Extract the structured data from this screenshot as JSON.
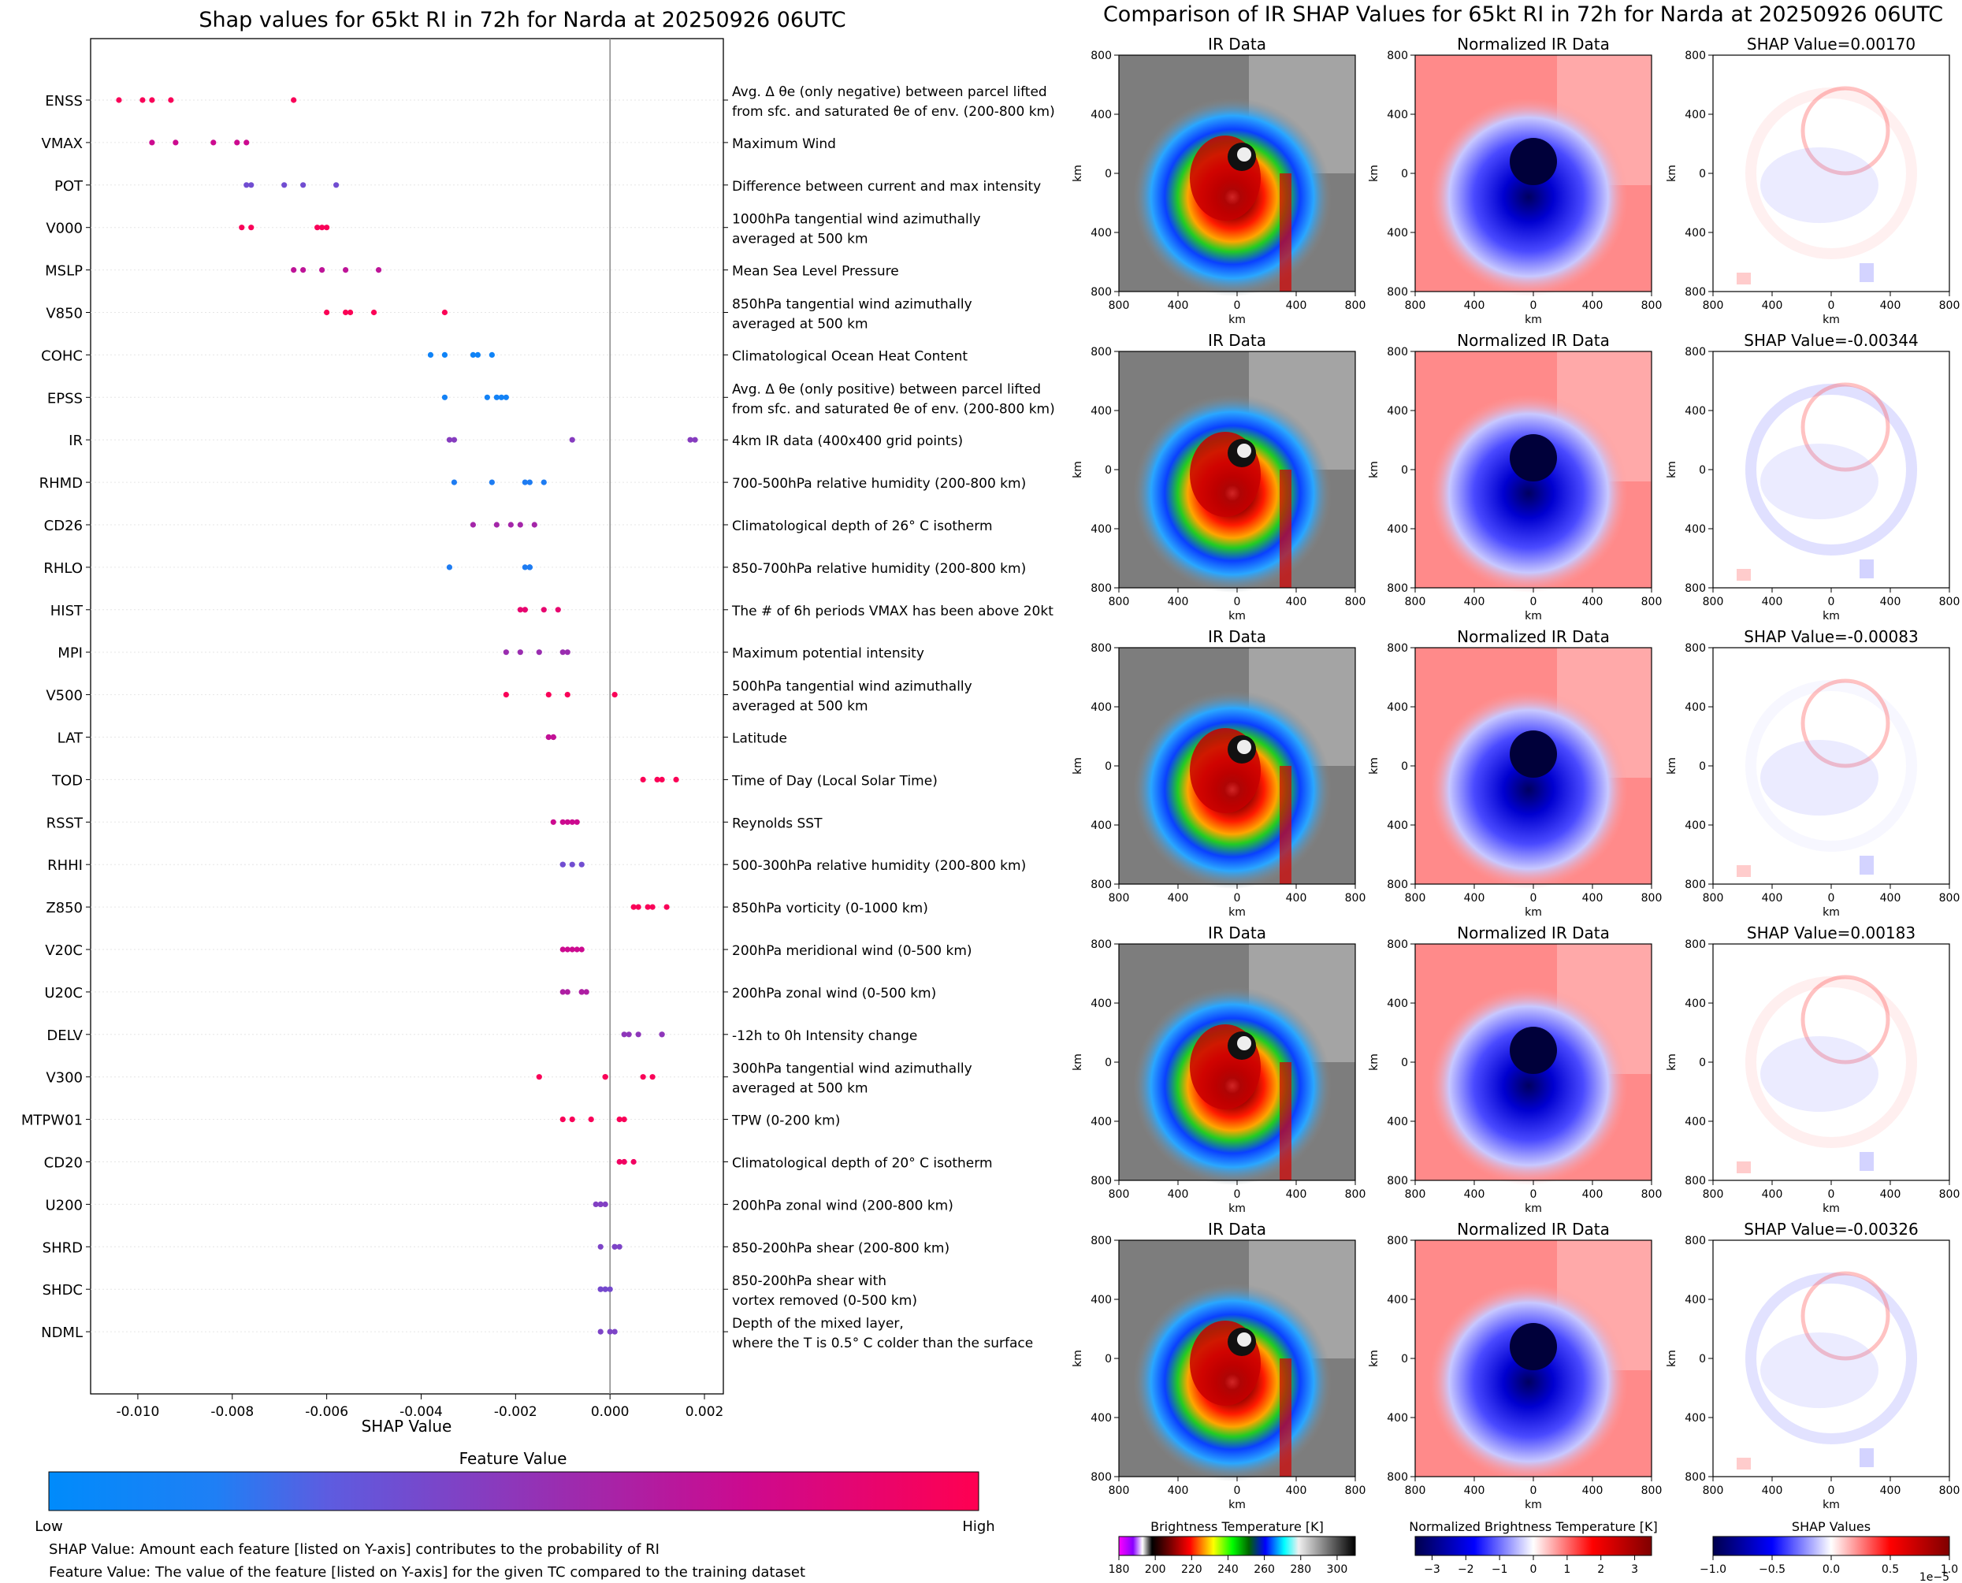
{
  "left_title": "Shap values for 65kt RI in 72h for Narda at 20250926 06UTC",
  "right_title": "Comparison of IR SHAP Values for 65kt RI in 72h for Narda at 20250926 06UTC",
  "chart_data": {
    "type": "scatter",
    "title": "Shap values for 65kt RI in 72h for Narda at 20250926 06UTC",
    "xlabel": "SHAP Value",
    "xlim": [
      -0.011,
      0.0024
    ],
    "xticks": [
      "-0.010",
      "-0.008",
      "-0.006",
      "-0.004",
      "-0.002",
      "0.000",
      "0.002"
    ],
    "xtick_values": [
      -0.01,
      -0.008,
      -0.006,
      -0.004,
      -0.002,
      0.0,
      0.002
    ],
    "vline": 0.0,
    "features": [
      {
        "name": "ENSS",
        "desc": [
          "Avg. Δ θe (only negative) between parcel lifted",
          "from sfc. and saturated θe of env. (200-800 km)"
        ],
        "fv": 0.97,
        "values": [
          -0.0104,
          -0.0099,
          -0.0097,
          -0.0093,
          -0.0067
        ]
      },
      {
        "name": "VMAX",
        "desc": [
          "Maximum Wind"
        ],
        "fv": 0.75,
        "values": [
          -0.0097,
          -0.0092,
          -0.0084,
          -0.0079,
          -0.0077
        ]
      },
      {
        "name": "POT",
        "desc": [
          "Difference between current and max intensity"
        ],
        "fv": 0.33,
        "values": [
          -0.0077,
          -0.0076,
          -0.0069,
          -0.0065,
          -0.0058
        ]
      },
      {
        "name": "V000",
        "desc": [
          "1000hPa tangential wind azimuthally",
          "averaged at 500 km"
        ],
        "fv": 0.97,
        "values": [
          -0.0078,
          -0.0076,
          -0.0062,
          -0.0061,
          -0.006
        ]
      },
      {
        "name": "MSLP",
        "desc": [
          "Mean Sea Level Pressure"
        ],
        "fv": 0.68,
        "values": [
          -0.0067,
          -0.0065,
          -0.0061,
          -0.0056,
          -0.0049
        ]
      },
      {
        "name": "V850",
        "desc": [
          "850hPa tangential wind azimuthally",
          "averaged at 500 km"
        ],
        "fv": 0.98,
        "values": [
          -0.006,
          -0.0056,
          -0.0055,
          -0.005,
          -0.0035
        ]
      },
      {
        "name": "COHC",
        "desc": [
          "Climatological Ocean Heat Content"
        ],
        "fv": 0.04,
        "values": [
          -0.0038,
          -0.0035,
          -0.0029,
          -0.0028,
          -0.0025
        ]
      },
      {
        "name": "EPSS",
        "desc": [
          "Avg. Δ θe (only positive) between parcel lifted",
          "from sfc. and saturated θe of env. (200-800 km)"
        ],
        "fv": 0.05,
        "values": [
          -0.0035,
          -0.0026,
          -0.0024,
          -0.0023,
          -0.0022
        ]
      },
      {
        "name": "IR",
        "desc": [
          "4km IR data (400x400 grid points)"
        ],
        "fv": 0.42,
        "values": [
          -0.0034,
          -0.0033,
          -0.0008,
          0.0017,
          0.0018
        ]
      },
      {
        "name": "RHMD",
        "desc": [
          "700-500hPa relative humidity (200-800 km)"
        ],
        "fv": 0.08,
        "values": [
          -0.0033,
          -0.0025,
          -0.0018,
          -0.0017,
          -0.0014
        ]
      },
      {
        "name": "CD26",
        "desc": [
          "Climatological depth of 26° C isotherm"
        ],
        "fv": 0.55,
        "values": [
          -0.0029,
          -0.0024,
          -0.0021,
          -0.0019,
          -0.0016
        ]
      },
      {
        "name": "RHLO",
        "desc": [
          "850-700hPa relative humidity (200-800 km)"
        ],
        "fv": 0.08,
        "values": [
          -0.0034,
          -0.0018,
          -0.0017,
          -0.0017,
          -0.0017
        ]
      },
      {
        "name": "HIST",
        "desc": [
          "The # of 6h periods VMAX has been above 20kt"
        ],
        "fv": 0.88,
        "values": [
          -0.0019,
          -0.0018,
          -0.0018,
          -0.0014,
          -0.0011
        ]
      },
      {
        "name": "MPI",
        "desc": [
          "Maximum potential intensity"
        ],
        "fv": 0.5,
        "values": [
          -0.0022,
          -0.0019,
          -0.0015,
          -0.001,
          -0.0009
        ]
      },
      {
        "name": "V500",
        "desc": [
          "500hPa tangential wind azimuthally",
          "averaged at 500 km"
        ],
        "fv": 0.97,
        "values": [
          -0.0022,
          -0.0013,
          -0.0009,
          0.0001
        ]
      },
      {
        "name": "LAT",
        "desc": [
          "Latitude"
        ],
        "fv": 0.7,
        "values": [
          -0.0013,
          -0.0013,
          -0.0012,
          -0.0012,
          -0.0012
        ]
      },
      {
        "name": "TOD",
        "desc": [
          "Time of Day (Local Solar Time)"
        ],
        "fv": 0.98,
        "values": [
          0.0007,
          0.001,
          0.0011,
          0.0014
        ]
      },
      {
        "name": "RSST",
        "desc": [
          "Reynolds SST"
        ],
        "fv": 0.75,
        "values": [
          -0.0012,
          -0.001,
          -0.0009,
          -0.0008,
          -0.0007
        ]
      },
      {
        "name": "RHHI",
        "desc": [
          "500-300hPa relative humidity (200-800 km)"
        ],
        "fv": 0.33,
        "values": [
          -0.001,
          -0.001,
          -0.0008,
          -0.0006
        ]
      },
      {
        "name": "Z850",
        "desc": [
          "850hPa vorticity (0-1000 km)"
        ],
        "fv": 0.97,
        "values": [
          0.0005,
          0.0006,
          0.0008,
          0.0009,
          0.0012
        ]
      },
      {
        "name": "V20C",
        "desc": [
          "200hPa meridional wind (0-500 km)"
        ],
        "fv": 0.75,
        "values": [
          -0.001,
          -0.0009,
          -0.0008,
          -0.0007,
          -0.0006
        ]
      },
      {
        "name": "U20C",
        "desc": [
          "200hPa zonal wind (0-500 km)"
        ],
        "fv": 0.6,
        "values": [
          -0.001,
          -0.0009,
          -0.0006,
          -0.0006,
          -0.0005
        ]
      },
      {
        "name": "DELV",
        "desc": [
          "-12h to 0h Intensity change"
        ],
        "fv": 0.45,
        "values": [
          0.0003,
          0.0004,
          0.0006,
          0.0011,
          0.0011
        ]
      },
      {
        "name": "V300",
        "desc": [
          "300hPa tangential wind azimuthally",
          "averaged at 500 km"
        ],
        "fv": 0.97,
        "values": [
          -0.0015,
          -0.0001,
          -0.0001,
          0.0007,
          0.0009
        ]
      },
      {
        "name": "MTPW01",
        "desc": [
          "TPW (0-200 km)"
        ],
        "fv": 0.97,
        "values": [
          -0.001,
          -0.0008,
          -0.0004,
          0.0002,
          0.0003
        ]
      },
      {
        "name": "CD20",
        "desc": [
          "Climatological depth of 20° C isotherm"
        ],
        "fv": 0.93,
        "values": [
          0.0002,
          0.0003,
          0.0003,
          0.0005
        ]
      },
      {
        "name": "U200",
        "desc": [
          "200hPa zonal wind (200-800 km)"
        ],
        "fv": 0.4,
        "values": [
          -0.0003,
          -0.0002,
          -0.0002,
          -0.0001
        ]
      },
      {
        "name": "SHRD",
        "desc": [
          "850-200hPa shear (200-800 km)"
        ],
        "fv": 0.38,
        "values": [
          -0.0002,
          0.0001,
          0.0001,
          0.0002
        ]
      },
      {
        "name": "SHDC",
        "desc": [
          "850-200hPa shear with",
          "vortex removed (0-500 km)"
        ],
        "fv": 0.35,
        "values": [
          -0.0002,
          -0.0002,
          -0.0001,
          -0.0001,
          0.0
        ]
      },
      {
        "name": "NDML",
        "desc": [
          "Depth of the mixed layer,",
          "where the T is 0.5° C colder than the surface"
        ],
        "fv": 0.38,
        "values": [
          -0.0002,
          0.0,
          0.0001
        ]
      }
    ],
    "feature_value_colorbar": {
      "title": "Feature Value",
      "low": "Low",
      "high": "High",
      "colors": [
        "#008bfb",
        "#5d5ce0",
        "#9a2db0",
        "#cc0a8f",
        "#ff0051"
      ]
    },
    "notes": [
      "SHAP Value: Amount each feature [listed on Y-axis] contributes to the probability of RI",
      "Feature Value: The value of the feature [listed on Y-axis] for the given TC compared to the training dataset"
    ]
  },
  "panel_grid": {
    "column_titles": [
      "IR Data",
      "Normalized IR Data"
    ],
    "shap_titles": [
      "SHAP Value=0.00170",
      "SHAP Value=-0.00344",
      "SHAP Value=-0.00083",
      "SHAP Value=0.00183",
      "SHAP Value=-0.00326"
    ],
    "shap_values": [
      0.0017,
      -0.00344,
      -0.00083,
      0.00183,
      -0.00326
    ],
    "axis_label": "km",
    "x_ticks": [
      "800",
      "400",
      "0",
      "400",
      "800"
    ],
    "y_ticks": [
      "800",
      "400",
      "0",
      "400",
      "800"
    ]
  },
  "colorbars": {
    "brightness": {
      "title": "Brightness Temperature [K]",
      "ticks": [
        "180",
        "200",
        "220",
        "240",
        "260",
        "280",
        "300"
      ],
      "tick_values": [
        180,
        200,
        220,
        240,
        260,
        280,
        300
      ],
      "range": [
        180,
        310
      ]
    },
    "normalized": {
      "title": "Normalized Brightness Temperature [K]",
      "ticks": [
        "−3",
        "−2",
        "−1",
        "0",
        "1",
        "2",
        "3"
      ],
      "tick_values": [
        -3,
        -2,
        -1,
        0,
        1,
        2,
        3
      ],
      "range": [
        -3.5,
        3.5
      ]
    },
    "shap": {
      "title": "SHAP Values",
      "ticks": [
        "−1.0",
        "−0.5",
        "0.0",
        "0.5",
        "1.0"
      ],
      "tick_values": [
        -1,
        -0.5,
        0,
        0.5,
        1
      ],
      "range": [
        -1,
        1
      ],
      "multiplier": "1e−5"
    }
  }
}
